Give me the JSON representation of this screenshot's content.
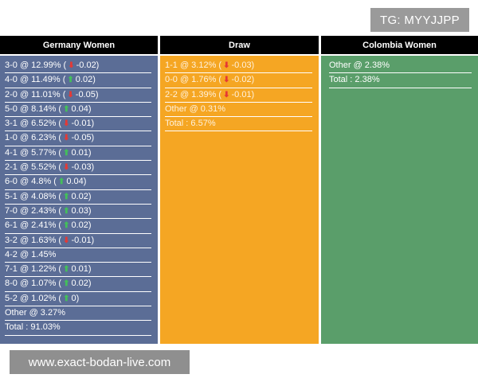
{
  "badge": "TG: MYYJJPP",
  "watermark": "www.exact-bodan-live.com",
  "colors": {
    "german": "#5b6d96",
    "draw": "#f5a623",
    "colombia": "#5a9e6a",
    "up": "#43c05a",
    "down": "#e53935"
  },
  "columns": [
    {
      "title": "Germany Women",
      "rows": [
        {
          "score": "3-0 @ 12.99% (",
          "dir": "down",
          "change": "-0.02)"
        },
        {
          "score": "4-0 @ 11.49% (",
          "dir": "up",
          "change": "0.02)"
        },
        {
          "score": "2-0 @ 11.01% (",
          "dir": "down",
          "change": "-0.05)"
        },
        {
          "score": "5-0 @ 8.14% (",
          "dir": "up",
          "change": "0.04)"
        },
        {
          "score": "3-1 @ 6.52% (",
          "dir": "down",
          "change": "-0.01)"
        },
        {
          "score": "1-0 @ 6.23% (",
          "dir": "down",
          "change": "-0.05)"
        },
        {
          "score": "4-1 @ 5.77% (",
          "dir": "up",
          "change": "0.01)"
        },
        {
          "score": "2-1 @ 5.52% (",
          "dir": "down",
          "change": "-0.03)"
        },
        {
          "score": "6-0 @ 4.8% (",
          "dir": "up",
          "change": "0.04)"
        },
        {
          "score": "5-1 @ 4.08% (",
          "dir": "up",
          "change": "0.02)"
        },
        {
          "score": "7-0 @ 2.43% (",
          "dir": "up",
          "change": "0.03)"
        },
        {
          "score": "6-1 @ 2.41% (",
          "dir": "up",
          "change": "0.02)"
        },
        {
          "score": "3-2 @ 1.63% (",
          "dir": "down",
          "change": "-0.01)"
        },
        {
          "score": "4-2 @ 1.45%",
          "dir": "",
          "change": ""
        },
        {
          "score": "7-1 @ 1.22% (",
          "dir": "up",
          "change": "0.01)"
        },
        {
          "score": "8-0 @ 1.07% (",
          "dir": "up",
          "change": "0.02)"
        },
        {
          "score": "5-2 @ 1.02% (",
          "dir": "up",
          "change": "0)"
        },
        {
          "score": "Other @ 3.27%",
          "dir": "",
          "change": ""
        },
        {
          "score": "Total : 91.03%",
          "dir": "",
          "change": ""
        }
      ]
    },
    {
      "title": "Draw",
      "rows": [
        {
          "score": "1-1 @ 3.12% (",
          "dir": "down",
          "change": "-0.03)"
        },
        {
          "score": "0-0 @ 1.76% (",
          "dir": "down",
          "change": "-0.02)"
        },
        {
          "score": "2-2 @ 1.39% (",
          "dir": "down",
          "change": "-0.01)"
        },
        {
          "score": "Other @ 0.31%",
          "dir": "",
          "change": ""
        },
        {
          "score": "Total : 6.57%",
          "dir": "",
          "change": ""
        }
      ]
    },
    {
      "title": "Colombia Women",
      "rows": [
        {
          "score": "Other @ 2.38%",
          "dir": "",
          "change": ""
        },
        {
          "score": "Total : 2.38%",
          "dir": "",
          "change": ""
        }
      ]
    }
  ]
}
